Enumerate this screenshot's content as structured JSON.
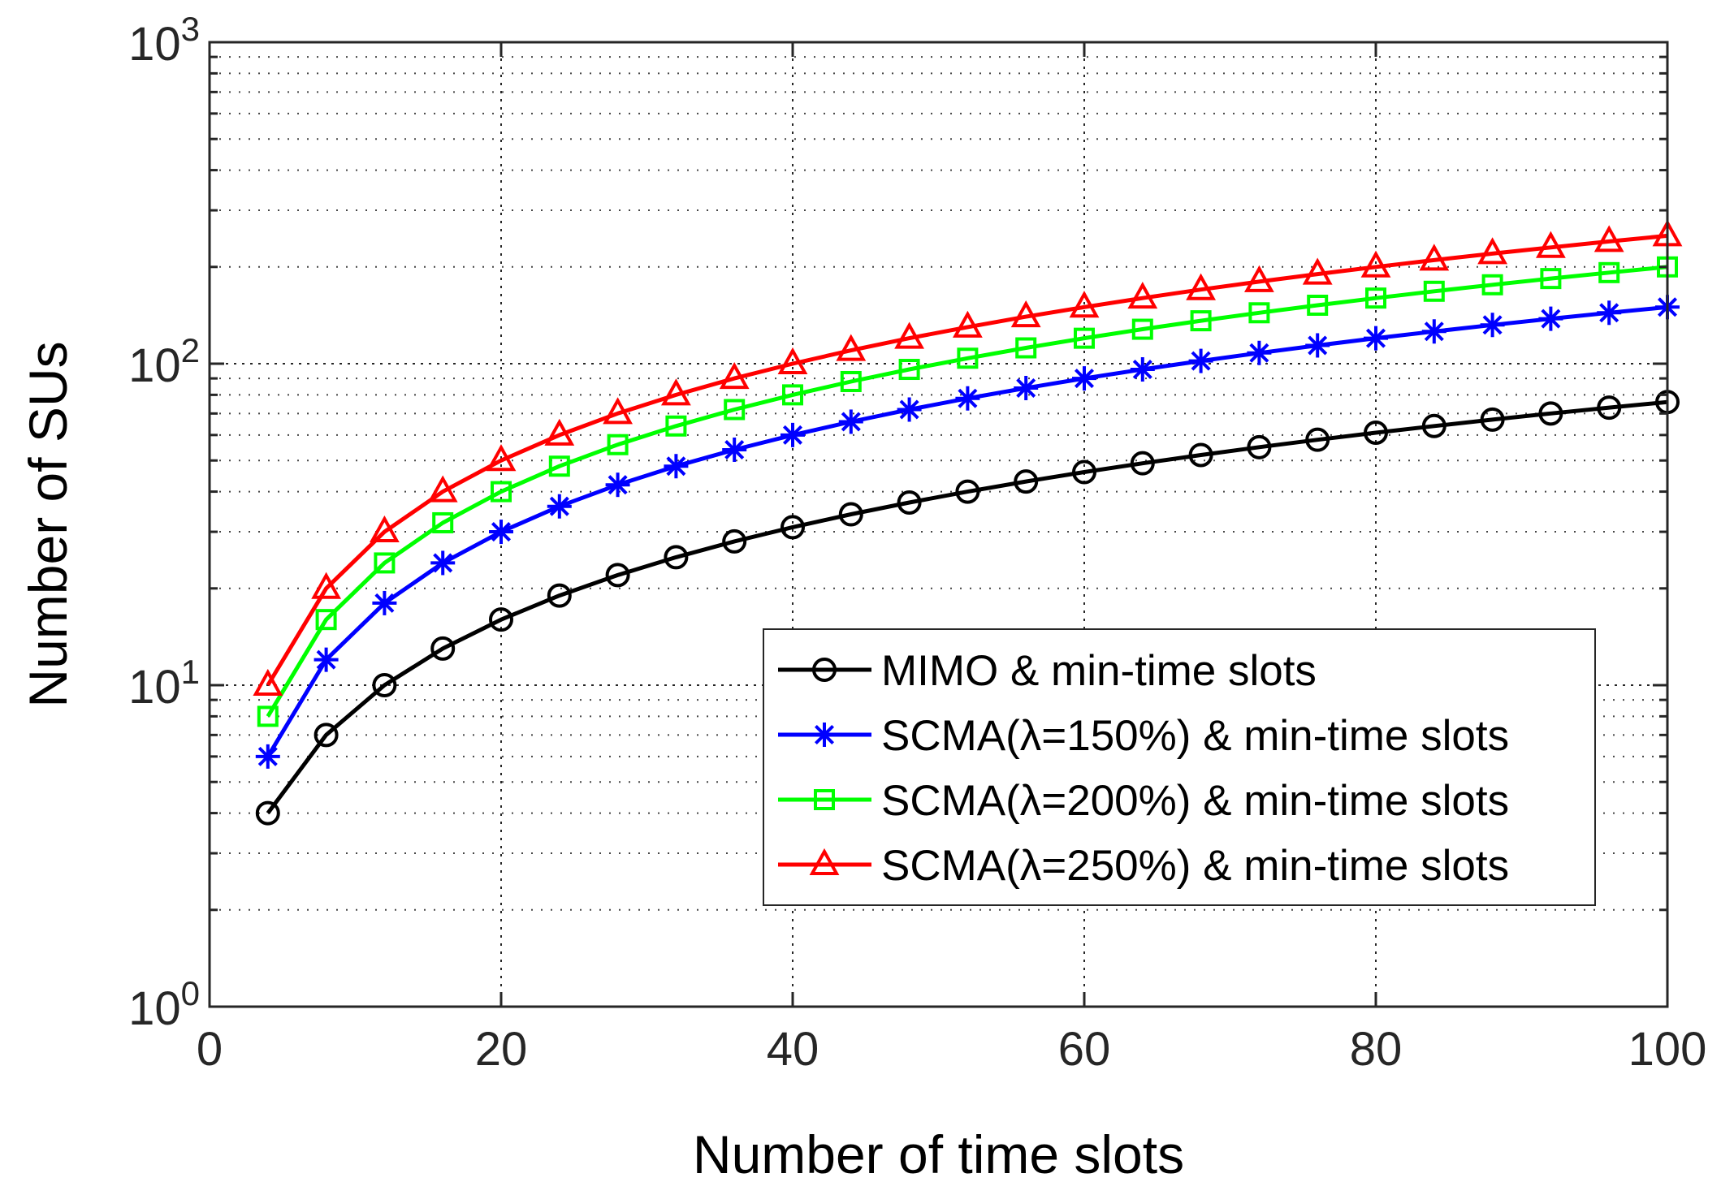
{
  "chart_data": {
    "type": "line",
    "xlabel": "Number of time slots",
    "ylabel": "Number of SUs",
    "xscale": "linear",
    "yscale": "log",
    "xlim": [
      0,
      100
    ],
    "ylim": [
      1,
      1000
    ],
    "xticks": [
      0,
      20,
      40,
      60,
      80,
      100
    ],
    "xtick_labels": [
      "0",
      "20",
      "40",
      "60",
      "80",
      "100"
    ],
    "yticks": [
      {
        "value": 1,
        "base": "10",
        "exp": "0"
      },
      {
        "value": 10,
        "base": "10",
        "exp": "1"
      },
      {
        "value": 100,
        "base": "10",
        "exp": "2"
      },
      {
        "value": 1000,
        "base": "10",
        "exp": "3"
      }
    ],
    "grid": true,
    "legend_position": "lower-right",
    "x": [
      4,
      8,
      12,
      16,
      20,
      24,
      28,
      32,
      36,
      40,
      44,
      48,
      52,
      56,
      60,
      64,
      68,
      72,
      76,
      80,
      84,
      88,
      92,
      96,
      100
    ],
    "series": [
      {
        "name": "MIMO & min-time slots",
        "color": "#000000",
        "marker": "circle",
        "values": [
          4,
          7,
          10,
          13,
          16,
          19,
          22,
          25,
          28,
          31,
          34,
          37,
          40,
          43,
          46,
          49,
          52,
          55,
          58,
          61,
          64,
          67,
          70,
          73,
          76
        ]
      },
      {
        "name": "SCMA(λ=150%) & min-time slots",
        "color": "#0000ff",
        "marker": "asterisk",
        "values": [
          6,
          12,
          18,
          24,
          30,
          36,
          42,
          48,
          54,
          60,
          66,
          72,
          78,
          84,
          90,
          96,
          102,
          108,
          114,
          120,
          126,
          132,
          138,
          144,
          150
        ]
      },
      {
        "name": "SCMA(λ=200%) & min-time slots",
        "color": "#00ff00",
        "marker": "square",
        "values": [
          8,
          16,
          24,
          32,
          40,
          48,
          56,
          64,
          72,
          80,
          88,
          96,
          104,
          112,
          120,
          128,
          136,
          144,
          152,
          160,
          168,
          176,
          184,
          192,
          200
        ]
      },
      {
        "name": "SCMA(λ=250%) & min-time slots",
        "color": "#ff0000",
        "marker": "triangle",
        "values": [
          10,
          20,
          30,
          40,
          50,
          60,
          70,
          80,
          90,
          100,
          110,
          120,
          130,
          140,
          150,
          160,
          170,
          180,
          190,
          200,
          210,
          220,
          230,
          240,
          250
        ]
      }
    ]
  }
}
